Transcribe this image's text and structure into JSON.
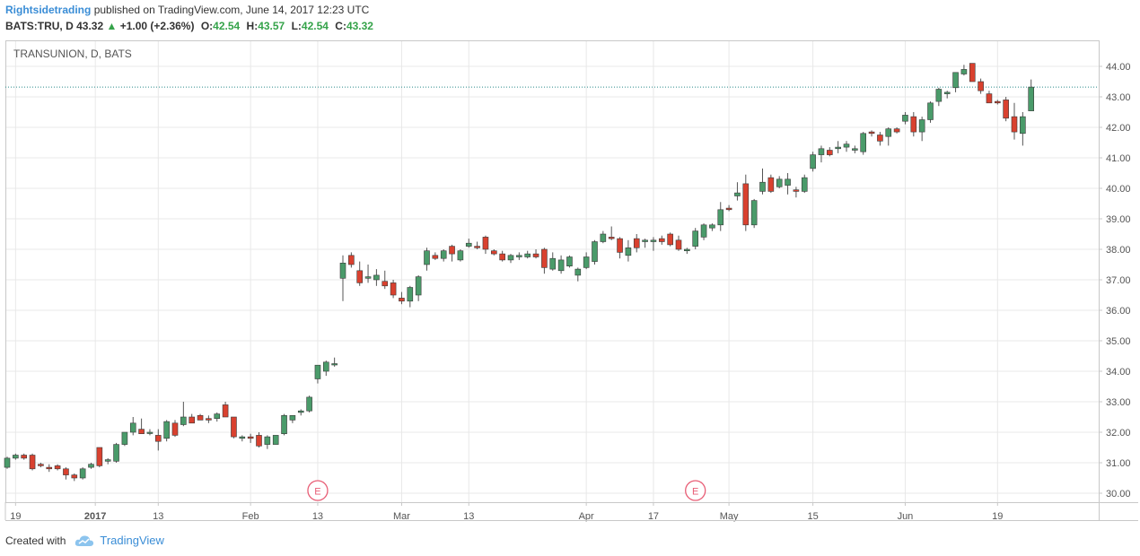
{
  "header": {
    "author": "Rightsidetrading",
    "published": "published on TradingView.com, June 14, 2017 12:23 UTC",
    "symbol": "BATS:TRU, D",
    "last": "43.32",
    "arrow": "▲",
    "change": "+1.00 (+2.36%)",
    "o_label": "O:",
    "o": "42.54",
    "h_label": "H:",
    "h": "43.57",
    "l_label": "L:",
    "l": "42.54",
    "c_label": "C:",
    "c": "43.32"
  },
  "footer": {
    "created_with": "Created with",
    "brand": "TradingView"
  },
  "colors": {
    "up": "#4a9b6a",
    "down": "#d9412f",
    "grid": "#e8e8e8",
    "accent": "#3a8dd6",
    "earnings": "#e85d75"
  },
  "chart_data": {
    "type": "candlestick",
    "title": "TRANSUNION, D, BATS",
    "ylim": [
      29.7,
      44.5
    ],
    "y_ticks": [
      "30.00",
      "31.00",
      "32.00",
      "33.00",
      "34.00",
      "35.00",
      "36.00",
      "37.00",
      "38.00",
      "39.00",
      "40.00",
      "41.00",
      "42.00",
      "43.00",
      "44.00"
    ],
    "x_ticks": [
      {
        "label": "19",
        "i": 1
      },
      {
        "label": "2017",
        "i": 10.5
      },
      {
        "label": "13",
        "i": 18
      },
      {
        "label": "Feb",
        "i": 29
      },
      {
        "label": "13",
        "i": 37
      },
      {
        "label": "Mar",
        "i": 47
      },
      {
        "label": "13",
        "i": 55
      },
      {
        "label": "Apr",
        "i": 69
      },
      {
        "label": "17",
        "i": 77
      },
      {
        "label": "May",
        "i": 86
      },
      {
        "label": "15",
        "i": 96
      },
      {
        "label": "Jun",
        "i": 107
      },
      {
        "label": "19",
        "i": 118
      }
    ],
    "last_price_line": 43.32,
    "earnings_markers": [
      {
        "label": "E",
        "i": 37
      },
      {
        "label": "E",
        "i": 82
      }
    ],
    "candles": [
      [
        30.85,
        31.2,
        30.8,
        31.15
      ],
      [
        31.15,
        31.3,
        31.1,
        31.25
      ],
      [
        31.25,
        31.3,
        31.1,
        31.15
      ],
      [
        31.25,
        31.3,
        30.75,
        30.8
      ],
      [
        30.95,
        31.0,
        30.85,
        30.9
      ],
      [
        30.85,
        30.95,
        30.7,
        30.8
      ],
      [
        30.9,
        30.95,
        30.75,
        30.8
      ],
      [
        30.8,
        30.85,
        30.45,
        30.6
      ],
      [
        30.6,
        30.65,
        30.4,
        30.5
      ],
      [
        30.5,
        30.85,
        30.45,
        30.8
      ],
      [
        30.85,
        31.0,
        30.8,
        30.95
      ],
      [
        31.5,
        31.5,
        30.85,
        30.9
      ],
      [
        31.05,
        31.15,
        30.95,
        31.1
      ],
      [
        31.05,
        31.65,
        31.0,
        31.6
      ],
      [
        31.6,
        32.0,
        31.55,
        32.0
      ],
      [
        32.0,
        32.5,
        31.9,
        32.3
      ],
      [
        32.1,
        32.45,
        31.95,
        31.95
      ],
      [
        32.0,
        32.1,
        31.9,
        32.0
      ],
      [
        31.9,
        32.1,
        31.4,
        31.7
      ],
      [
        31.8,
        32.4,
        31.7,
        32.35
      ],
      [
        32.3,
        32.4,
        31.85,
        31.9
      ],
      [
        32.25,
        33.0,
        32.2,
        32.5
      ],
      [
        32.5,
        32.6,
        32.3,
        32.3
      ],
      [
        32.55,
        32.6,
        32.4,
        32.4
      ],
      [
        32.45,
        32.55,
        32.3,
        32.4
      ],
      [
        32.45,
        32.65,
        32.35,
        32.6
      ],
      [
        32.9,
        33.0,
        32.5,
        32.5
      ],
      [
        32.5,
        32.5,
        31.8,
        31.85
      ],
      [
        31.8,
        31.9,
        31.7,
        31.85
      ],
      [
        31.85,
        31.95,
        31.65,
        31.8
      ],
      [
        31.9,
        32.0,
        31.5,
        31.55
      ],
      [
        31.6,
        31.9,
        31.45,
        31.85
      ],
      [
        31.6,
        31.9,
        31.6,
        31.9
      ],
      [
        31.95,
        32.6,
        31.9,
        32.55
      ],
      [
        32.4,
        32.55,
        32.3,
        32.55
      ],
      [
        32.65,
        32.75,
        32.55,
        32.7
      ],
      [
        32.7,
        33.2,
        32.65,
        33.15
      ],
      [
        33.75,
        34.2,
        33.6,
        34.2
      ],
      [
        34.0,
        34.35,
        33.85,
        34.3
      ],
      [
        34.25,
        34.45,
        34.15,
        34.25
      ],
      [
        37.05,
        37.8,
        36.3,
        37.55
      ],
      [
        37.8,
        37.9,
        37.4,
        37.5
      ],
      [
        37.3,
        37.6,
        36.8,
        36.9
      ],
      [
        37.05,
        37.5,
        36.9,
        37.1
      ],
      [
        37.0,
        37.35,
        36.8,
        37.15
      ],
      [
        36.95,
        37.3,
        36.7,
        36.8
      ],
      [
        36.9,
        37.0,
        36.4,
        36.5
      ],
      [
        36.4,
        36.6,
        36.2,
        36.3
      ],
      [
        36.3,
        36.8,
        36.1,
        36.75
      ],
      [
        36.5,
        37.15,
        36.3,
        37.1
      ],
      [
        37.5,
        38.05,
        37.3,
        37.95
      ],
      [
        37.8,
        37.9,
        37.65,
        37.7
      ],
      [
        37.7,
        38.0,
        37.6,
        37.95
      ],
      [
        38.1,
        38.15,
        37.6,
        37.85
      ],
      [
        37.65,
        38.0,
        37.6,
        37.95
      ],
      [
        38.1,
        38.35,
        38.05,
        38.2
      ],
      [
        38.1,
        38.25,
        38.0,
        38.05
      ],
      [
        38.4,
        38.45,
        37.85,
        38.0
      ],
      [
        37.95,
        38.0,
        37.8,
        37.85
      ],
      [
        37.85,
        37.95,
        37.6,
        37.65
      ],
      [
        37.65,
        37.85,
        37.55,
        37.8
      ],
      [
        37.75,
        37.9,
        37.65,
        37.8
      ],
      [
        37.75,
        37.95,
        37.7,
        37.85
      ],
      [
        37.85,
        38.0,
        37.7,
        37.75
      ],
      [
        38.0,
        38.05,
        37.2,
        37.4
      ],
      [
        37.35,
        37.9,
        37.3,
        37.7
      ],
      [
        37.3,
        37.8,
        37.2,
        37.65
      ],
      [
        37.45,
        37.8,
        37.4,
        37.75
      ],
      [
        37.15,
        37.4,
        36.95,
        37.35
      ],
      [
        37.4,
        37.9,
        37.35,
        37.75
      ],
      [
        37.6,
        38.3,
        37.5,
        38.25
      ],
      [
        38.25,
        38.6,
        38.2,
        38.5
      ],
      [
        38.4,
        38.75,
        38.3,
        38.35
      ],
      [
        38.35,
        38.4,
        37.7,
        37.9
      ],
      [
        37.8,
        38.3,
        37.6,
        38.05
      ],
      [
        38.35,
        38.5,
        37.9,
        38.05
      ],
      [
        38.25,
        38.35,
        38.05,
        38.3
      ],
      [
        38.25,
        38.4,
        37.95,
        38.3
      ],
      [
        38.35,
        38.45,
        38.15,
        38.25
      ],
      [
        38.5,
        38.55,
        38.1,
        38.15
      ],
      [
        38.3,
        38.45,
        37.95,
        38.0
      ],
      [
        37.95,
        38.05,
        37.85,
        38.0
      ],
      [
        38.1,
        38.7,
        38.0,
        38.6
      ],
      [
        38.4,
        38.85,
        38.3,
        38.8
      ],
      [
        38.7,
        38.85,
        38.6,
        38.8
      ],
      [
        38.8,
        39.55,
        38.6,
        39.3
      ],
      [
        39.35,
        39.45,
        39.25,
        39.3
      ],
      [
        39.75,
        40.2,
        39.6,
        39.85
      ],
      [
        40.15,
        40.45,
        38.6,
        38.8
      ],
      [
        38.8,
        39.65,
        38.7,
        39.6
      ],
      [
        39.9,
        40.65,
        39.8,
        40.2
      ],
      [
        40.35,
        40.45,
        39.85,
        39.9
      ],
      [
        40.05,
        40.4,
        40.0,
        40.3
      ],
      [
        40.1,
        40.5,
        39.8,
        40.3
      ],
      [
        39.95,
        40.05,
        39.7,
        39.9
      ],
      [
        39.9,
        40.45,
        39.85,
        40.35
      ],
      [
        40.65,
        41.2,
        40.55,
        41.1
      ],
      [
        41.1,
        41.4,
        40.85,
        41.3
      ],
      [
        41.25,
        41.35,
        41.05,
        41.1
      ],
      [
        41.3,
        41.55,
        41.15,
        41.35
      ],
      [
        41.35,
        41.55,
        41.2,
        41.45
      ],
      [
        41.25,
        41.4,
        41.15,
        41.3
      ],
      [
        41.2,
        41.85,
        41.1,
        41.8
      ],
      [
        41.85,
        41.9,
        41.7,
        41.8
      ],
      [
        41.75,
        41.85,
        41.4,
        41.55
      ],
      [
        41.7,
        42.0,
        41.4,
        41.95
      ],
      [
        41.95,
        42.0,
        41.8,
        41.85
      ],
      [
        42.2,
        42.5,
        42.1,
        42.4
      ],
      [
        42.35,
        42.5,
        41.7,
        41.85
      ],
      [
        41.85,
        42.35,
        41.55,
        42.25
      ],
      [
        42.25,
        42.85,
        42.15,
        42.8
      ],
      [
        42.85,
        43.3,
        42.7,
        43.25
      ],
      [
        43.1,
        43.2,
        42.95,
        43.15
      ],
      [
        43.3,
        43.8,
        43.15,
        43.8
      ],
      [
        43.75,
        44.05,
        43.7,
        43.9
      ],
      [
        44.1,
        44.1,
        43.5,
        43.5
      ],
      [
        43.5,
        43.6,
        43.1,
        43.2
      ],
      [
        43.1,
        43.2,
        42.8,
        42.8
      ],
      [
        42.85,
        42.9,
        42.75,
        42.8
      ],
      [
        42.9,
        43.0,
        42.2,
        42.3
      ],
      [
        42.35,
        42.8,
        41.6,
        41.85
      ],
      [
        41.8,
        42.5,
        41.4,
        42.35
      ],
      [
        42.54,
        43.57,
        42.54,
        43.32
      ]
    ]
  }
}
